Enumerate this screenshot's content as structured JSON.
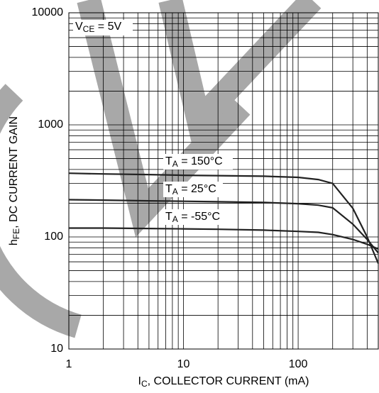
{
  "chart_data": {
    "type": "line",
    "xlabel": {
      "main": "I",
      "sub": "C",
      "rest": ", COLLECTOR CURRENT (mA)"
    },
    "ylabel": {
      "main": "h",
      "sub": "FE",
      "rest": ", DC CURRENT GAIN"
    },
    "annotation": {
      "main": "V",
      "sub": "CE",
      "rest": " = 5V"
    },
    "x": [
      1,
      2,
      5,
      10,
      20,
      50,
      100,
      150,
      200,
      300,
      400,
      500
    ],
    "series": [
      {
        "label": {
          "main": "T",
          "sub": "A",
          "rest": " =  150°C"
        },
        "color": "#222222",
        "values": [
          370,
          365,
          360,
          355,
          352,
          348,
          340,
          325,
          300,
          180,
          100,
          58
        ]
      },
      {
        "label": {
          "main": "T",
          "sub": "A",
          "rest": " =  25°C"
        },
        "color": "#222222",
        "values": [
          215,
          213,
          210,
          208,
          206,
          203,
          198,
          192,
          182,
          130,
          95,
          72
        ]
      },
      {
        "label": {
          "main": "T",
          "sub": "A",
          "rest": " =  -55°C"
        },
        "color": "#222222",
        "values": [
          120,
          120,
          119,
          118,
          117,
          115,
          112,
          110,
          105,
          95,
          86,
          78
        ]
      }
    ],
    "xlim": [
      1,
      500
    ],
    "ylim": [
      10,
      10000
    ],
    "xticks": [
      1,
      10,
      100
    ],
    "yticks": [
      10,
      100,
      1000,
      10000
    ],
    "xminor": [
      2,
      3,
      4,
      5,
      6,
      7,
      8,
      9,
      20,
      30,
      40,
      50,
      60,
      70,
      80,
      90,
      200,
      300,
      400
    ],
    "yminor": [
      20,
      30,
      40,
      50,
      60,
      70,
      80,
      90,
      200,
      300,
      400,
      500,
      600,
      700,
      800,
      900,
      2000,
      3000,
      4000,
      5000,
      6000,
      7000,
      8000,
      9000
    ],
    "xscale": "log",
    "yscale": "log",
    "grid": true
  }
}
